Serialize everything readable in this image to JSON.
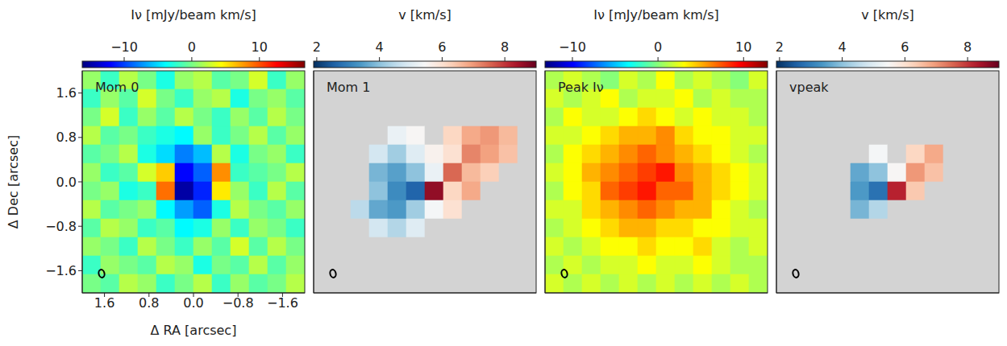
{
  "chart_data": [
    {
      "type": "heatmap",
      "title": "Mom 0",
      "xlabel": "Δ RA [arcsec]",
      "ylabel": "Δ Dec [arcsec]",
      "xlim": [
        2,
        -2
      ],
      "ylim": [
        -2,
        2
      ],
      "xticks": [
        1.6,
        0.8,
        {
          "value": 0,
          "label": "0.0"
        },
        {
          "value": -0.8,
          "label": "−0.8"
        },
        {
          "value": -1.6,
          "label": "−1.6"
        }
      ],
      "yticks": [
        {
          "value": -1.6,
          "label": "−1.6"
        },
        {
          "value": -0.8,
          "label": "−0.8"
        },
        {
          "value": 0,
          "label": "0.0"
        },
        0.8,
        1.6
      ],
      "color": "jet",
      "colorbar_label": "Iν [mJy/beam km/s]",
      "colorbar_range": [
        -16.2,
        16.7
      ],
      "colorbar_ticks": [
        {
          "value": -10,
          "label": "−10"
        },
        0,
        10
      ],
      "cells": [
        [
          1,
          -2,
          2,
          0,
          -3,
          1,
          2,
          -1,
          0,
          3,
          -2,
          1
        ],
        [
          -2,
          1,
          -1,
          3,
          0,
          -2,
          1,
          2,
          -3,
          0,
          1,
          -1
        ],
        [
          0,
          3,
          -2,
          1,
          -1,
          2,
          0,
          -2,
          1,
          -1,
          2,
          0
        ],
        [
          2,
          -1,
          0,
          -2,
          -3,
          -4,
          1,
          -2,
          0,
          2,
          -1,
          1
        ],
        [
          -1,
          0,
          2,
          -3,
          -5,
          -8,
          -6,
          2,
          -3,
          0,
          1,
          -2
        ],
        [
          1,
          -2,
          -1,
          3,
          6,
          -12,
          -9,
          8,
          -2,
          -1,
          0,
          2
        ],
        [
          0,
          1,
          -3,
          -2,
          9,
          -15,
          -11,
          5,
          1,
          -2,
          2,
          -1
        ],
        [
          2,
          -1,
          0,
          1,
          -4,
          -7,
          -9,
          -3,
          2,
          0,
          -1,
          1
        ],
        [
          -1,
          2,
          1,
          -2,
          -1,
          -4,
          -3,
          1,
          -2,
          1,
          0,
          -2
        ],
        [
          1,
          0,
          -2,
          2,
          0,
          -2,
          1,
          -1,
          3,
          -1,
          2,
          0
        ],
        [
          -2,
          1,
          0,
          -1,
          2,
          1,
          -3,
          0,
          -1,
          2,
          -1,
          1
        ],
        [
          0,
          -1,
          2,
          1,
          -2,
          0,
          2,
          -2,
          1,
          -1,
          0,
          2
        ]
      ]
    },
    {
      "type": "heatmap",
      "title": "Mom 1",
      "tick_labels": false,
      "xlim": [
        2,
        -2
      ],
      "ylim": [
        -2,
        2
      ],
      "xticks": [
        1.6,
        0.8,
        0,
        -0.8,
        -1.6
      ],
      "yticks": [
        -1.6,
        -0.8,
        0,
        0.8,
        1.6
      ],
      "color": "RdBu_r",
      "colorbar_label": "v [km/s]",
      "colorbar_range": [
        1.9,
        9.0
      ],
      "colorbar_ticks": [
        2,
        4,
        6,
        8
      ],
      "cells": [
        [
          null,
          null,
          null,
          null,
          null,
          null,
          null,
          null,
          null,
          null,
          null,
          null
        ],
        [
          null,
          null,
          null,
          null,
          null,
          null,
          null,
          null,
          null,
          null,
          null,
          null
        ],
        [
          null,
          null,
          null,
          null,
          null,
          null,
          null,
          null,
          null,
          null,
          null,
          null
        ],
        [
          null,
          null,
          null,
          null,
          5.2,
          5.5,
          null,
          6.2,
          6.8,
          7.0,
          6.6,
          null
        ],
        [
          null,
          null,
          null,
          4.8,
          4.2,
          5.0,
          5.6,
          6.0,
          7.2,
          6.9,
          6.5,
          null
        ],
        [
          null,
          null,
          null,
          3.8,
          3.5,
          4.0,
          5.2,
          7.5,
          6.6,
          6.3,
          null,
          null
        ],
        [
          null,
          null,
          null,
          4.0,
          3.2,
          2.6,
          8.6,
          6.2,
          6.8,
          null,
          null,
          null
        ],
        [
          null,
          null,
          4.5,
          3.6,
          3.4,
          4.2,
          5.4,
          6.0,
          null,
          null,
          null,
          null
        ],
        [
          null,
          null,
          null,
          4.8,
          4.4,
          5.0,
          null,
          null,
          null,
          null,
          null,
          null
        ],
        [
          null,
          null,
          null,
          null,
          null,
          null,
          null,
          null,
          null,
          null,
          null,
          null
        ],
        [
          null,
          null,
          null,
          null,
          null,
          null,
          null,
          null,
          null,
          null,
          null,
          null
        ],
        [
          null,
          null,
          null,
          null,
          null,
          null,
          null,
          null,
          null,
          null,
          null,
          null
        ]
      ]
    },
    {
      "type": "heatmap",
      "title": "Peak Iν",
      "tick_labels": false,
      "xlim": [
        2,
        -2
      ],
      "ylim": [
        -2,
        2
      ],
      "xticks": [
        1.6,
        0.8,
        0,
        -0.8,
        -1.6
      ],
      "yticks": [
        -1.6,
        -0.8,
        0,
        0.8,
        1.6
      ],
      "color": "jet",
      "colorbar_label": "Iν [mJy/beam km/s]",
      "colorbar_range": [
        -13.2,
        12.8
      ],
      "colorbar_ticks": [
        {
          "value": -10,
          "label": "−10"
        },
        0,
        10
      ],
      "cells": [
        [
          1,
          2,
          1,
          0,
          2,
          1,
          3,
          1,
          2,
          1,
          0,
          2
        ],
        [
          2,
          1,
          2,
          3,
          1,
          2,
          2,
          3,
          1,
          2,
          1,
          1
        ],
        [
          1,
          3,
          2,
          2,
          3,
          4,
          3,
          2,
          3,
          2,
          2,
          1
        ],
        [
          2,
          2,
          3,
          4,
          5,
          5,
          6,
          4,
          3,
          3,
          2,
          2
        ],
        [
          1,
          3,
          4,
          5,
          6,
          7,
          6,
          5,
          4,
          3,
          2,
          1
        ],
        [
          2,
          3,
          5,
          6,
          7,
          8,
          9,
          6,
          5,
          4,
          3,
          2
        ],
        [
          1,
          3,
          4,
          7,
          8,
          9,
          7,
          7,
          5,
          4,
          3,
          2
        ],
        [
          2,
          2,
          4,
          5,
          6,
          7,
          6,
          5,
          5,
          3,
          2,
          1
        ],
        [
          1,
          2,
          3,
          4,
          5,
          5,
          4,
          4,
          3,
          3,
          2,
          2
        ],
        [
          2,
          1,
          2,
          3,
          3,
          4,
          3,
          3,
          4,
          2,
          1,
          2
        ],
        [
          1,
          2,
          1,
          2,
          2,
          3,
          2,
          2,
          3,
          2,
          1,
          1
        ],
        [
          2,
          1,
          2,
          1,
          2,
          1,
          2,
          1,
          2,
          1,
          2,
          1
        ]
      ]
    },
    {
      "type": "heatmap",
      "title": "vpeak",
      "tick_labels": false,
      "xlim": [
        2,
        -2
      ],
      "ylim": [
        -2,
        2
      ],
      "xticks": [
        1.6,
        0.8,
        0,
        -0.8,
        -1.6
      ],
      "yticks": [
        -1.6,
        -0.8,
        0,
        0.8,
        1.6
      ],
      "color": "RdBu_r",
      "colorbar_label": "v [km/s]",
      "colorbar_range": [
        1.9,
        9.0
      ],
      "colorbar_ticks": [
        2,
        4,
        6,
        8
      ],
      "cells": [
        [
          null,
          null,
          null,
          null,
          null,
          null,
          null,
          null,
          null,
          null,
          null,
          null
        ],
        [
          null,
          null,
          null,
          null,
          null,
          null,
          null,
          null,
          null,
          null,
          null,
          null
        ],
        [
          null,
          null,
          null,
          null,
          null,
          null,
          null,
          null,
          null,
          null,
          null,
          null
        ],
        [
          null,
          null,
          null,
          null,
          null,
          null,
          null,
          null,
          null,
          null,
          null,
          null
        ],
        [
          null,
          null,
          null,
          null,
          null,
          5.4,
          null,
          6.2,
          6.8,
          null,
          null,
          null
        ],
        [
          null,
          null,
          null,
          null,
          3.6,
          4.0,
          5.5,
          7.0,
          6.5,
          null,
          null,
          null
        ],
        [
          null,
          null,
          null,
          null,
          3.4,
          2.8,
          8.2,
          6.4,
          null,
          null,
          null,
          null
        ],
        [
          null,
          null,
          null,
          null,
          3.8,
          4.4,
          null,
          null,
          null,
          null,
          null,
          null
        ],
        [
          null,
          null,
          null,
          null,
          null,
          null,
          null,
          null,
          null,
          null,
          null,
          null
        ],
        [
          null,
          null,
          null,
          null,
          null,
          null,
          null,
          null,
          null,
          null,
          null,
          null
        ],
        [
          null,
          null,
          null,
          null,
          null,
          null,
          null,
          null,
          null,
          null,
          null,
          null
        ],
        [
          null,
          null,
          null,
          null,
          null,
          null,
          null,
          null,
          null,
          null,
          null,
          null
        ]
      ]
    }
  ]
}
